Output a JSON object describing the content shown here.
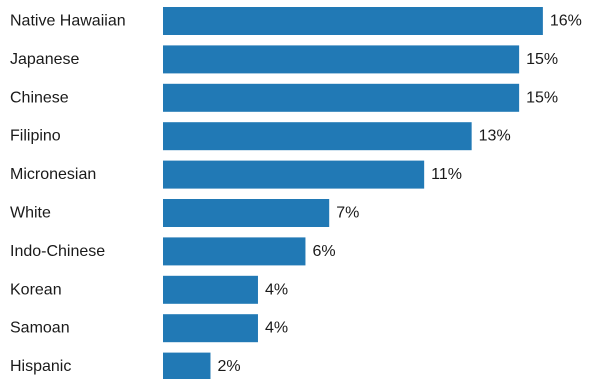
{
  "chart_data": {
    "type": "bar",
    "orientation": "horizontal",
    "categories": [
      "Native Hawaiian",
      "Japanese",
      "Chinese",
      "Filipino",
      "Micronesian",
      "White",
      "Indo-Chinese",
      "Korean",
      "Samoan",
      "Hispanic"
    ],
    "values": [
      16,
      15,
      15,
      13,
      11,
      7,
      6,
      4,
      4,
      2
    ],
    "value_labels": [
      "16%",
      "15%",
      "15%",
      "13%",
      "11%",
      "7%",
      "6%",
      "4%",
      "4%",
      "2%"
    ],
    "unit": "%",
    "xlim": [
      0,
      16.3
    ],
    "title": "",
    "xlabel": "",
    "ylabel": "",
    "grid": false,
    "bar_color": "#2179b5"
  }
}
